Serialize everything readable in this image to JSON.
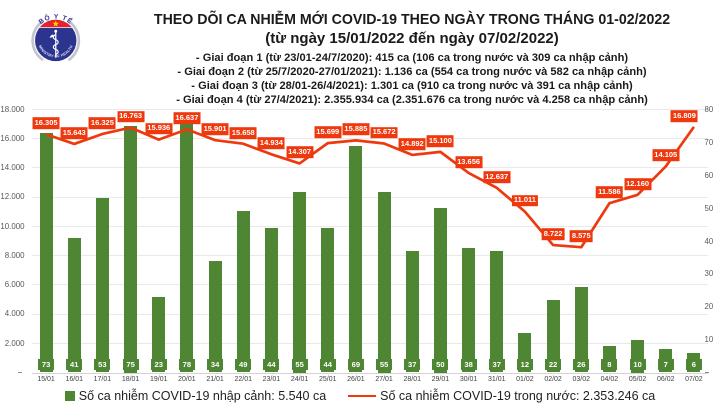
{
  "header": {
    "title": "THEO DÕI CA NHIỄM MỚI COVID-19 THEO NGÀY TRONG THÁNG 01-02/2022",
    "subtitle": "(từ ngày 15/01/2022 đến ngày 07/02/2022)",
    "periods": [
      "- Giai đoạn 1 (từ 23/01-24/7/2020): 415 ca (106 ca trong nước và 309 ca nhập cảnh)",
      "- Giai đoạn 2 (từ 25/7/2020-27/01/2021): 1.136 ca (554 ca trong nước và 582 ca nhập cảnh)",
      "- Giai đoạn 3 (từ 28/01-26/4/2021): 1.301 ca (910 ca trong nước và 391 ca nhập cảnh)",
      "- Giai đoạn 4 (từ 27/4/2021): 2.355.934 ca (2.351.676 ca trong nước và 4.258 ca nhập cảnh)"
    ]
  },
  "logo": {
    "top_text": "BỘ Y TẾ",
    "bottom_text": "MINISTRY OF HEALTH",
    "colors": {
      "navy": "#2b3590",
      "red": "#e62129",
      "star": "#ffd400",
      "silver": "#b9bac4"
    }
  },
  "chart_data": {
    "type": "combo",
    "categories": [
      "15/01",
      "16/01",
      "17/01",
      "18/01",
      "19/01",
      "20/01",
      "21/01",
      "22/01",
      "23/01",
      "24/01",
      "25/01",
      "26/01",
      "27/01",
      "28/01",
      "29/01",
      "30/01",
      "31/01",
      "01/02",
      "02/02",
      "03/02",
      "04/02",
      "05/02",
      "06/02",
      "07/02"
    ],
    "series": [
      {
        "name": "Số ca nhiễm COVID-19 nhập cảnh",
        "type": "bar",
        "axis": "right",
        "color": "#4e8634",
        "values": [
          73,
          41,
          53,
          75,
          23,
          78,
          34,
          49,
          44,
          55,
          44,
          69,
          55,
          37,
          50,
          38,
          37,
          12,
          22,
          26,
          8,
          10,
          7,
          6
        ],
        "value_labels": [
          "73",
          "41",
          "53",
          "75",
          "23",
          "78",
          "34",
          "49",
          "44",
          "55",
          "44",
          "69",
          "55",
          "37",
          "50",
          "38",
          "37",
          "12",
          "22",
          "26",
          "8",
          "10",
          "7",
          "6"
        ]
      },
      {
        "name": "Số ca nhiễm COVID-19 trong nước",
        "type": "line",
        "axis": "left",
        "color": "#ee390f",
        "values": [
          16305,
          15643,
          16325,
          16763,
          15936,
          16637,
          15901,
          15658,
          14934,
          14307,
          15699,
          15885,
          15672,
          14892,
          15100,
          13656,
          12637,
          11011,
          8722,
          8575,
          11586,
          12160,
          14105,
          16809
        ],
        "value_labels": [
          "16.305",
          "15.643",
          "16.325",
          "16.763",
          "15.936",
          "16.637",
          "15.901",
          "15.658",
          "14.934",
          "14.307",
          "15.699",
          "15.885",
          "15.672",
          "14.892",
          "15.100",
          "13.656",
          "12.637",
          "11.011",
          "8.722",
          "8.575",
          "11.586",
          "12.160",
          "14.105",
          "16.809"
        ]
      }
    ],
    "left_axis": {
      "min": 0,
      "max": 18000,
      "tick_step": 2000,
      "zero_label": "-",
      "tick_labels": [
        "2.000",
        "4.000",
        "6.000",
        "8.000",
        "10.000",
        "12.000",
        "14.000",
        "16.000",
        "18.000"
      ]
    },
    "right_axis": {
      "min": 0,
      "max": 80,
      "tick_step": 10,
      "zero_label": "-",
      "tick_labels": [
        "10",
        "20",
        "30",
        "40",
        "50",
        "60",
        "70",
        "80"
      ]
    },
    "grid": "horizontal",
    "legend_position": "bottom"
  },
  "legend": {
    "items": [
      {
        "label": "Số ca nhiễm COVID-19 nhập cảnh: 5.540 ca",
        "swatch": "square",
        "color": "#4e8634"
      },
      {
        "label": "Số ca nhiễm COVID-19 trong nước: 2.353.246 ca",
        "swatch": "line",
        "color": "#ee390f"
      }
    ]
  }
}
